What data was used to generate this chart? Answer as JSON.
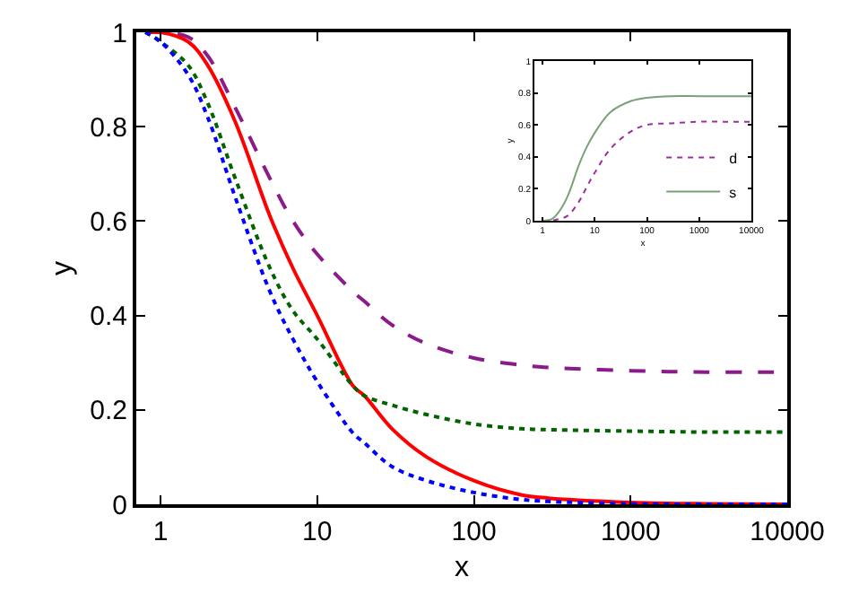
{
  "chart_data": [
    {
      "type": "line",
      "xlabel": "x",
      "ylabel": "y",
      "log": "x",
      "grid": false,
      "legend": false,
      "xlim": [
        0.7,
        10000
      ],
      "xticks": [
        1,
        10,
        100,
        1000,
        10000
      ],
      "ylim": [
        0,
        1
      ],
      "yticks": [
        0,
        0.2,
        0.4,
        0.6,
        0.8,
        1
      ],
      "x": [
        0.8,
        1,
        1.5,
        2,
        3,
        5,
        7,
        10,
        17,
        20,
        30,
        50,
        100,
        200,
        300,
        1000,
        3000,
        10000
      ],
      "series": [
        {
          "color": "#8b1a8b",
          "line_style": "dashed",
          "values": [
            1,
            1,
            0.99,
            0.95,
            0.84,
            0.69,
            0.6,
            0.53,
            0.45,
            0.43,
            0.38,
            0.34,
            0.31,
            0.295,
            0.29,
            0.283,
            0.28,
            0.28
          ]
        },
        {
          "color": "#ff0000",
          "line_style": "solid",
          "values": [
            1,
            1,
            0.98,
            0.93,
            0.81,
            0.61,
            0.5,
            0.4,
            0.25,
            0.23,
            0.16,
            0.1,
            0.05,
            0.02,
            0.013,
            0.004,
            0.001,
            0
          ]
        },
        {
          "color": "#006400",
          "line_style": "dotted",
          "values": [
            1,
            0.98,
            0.93,
            0.85,
            0.69,
            0.5,
            0.41,
            0.35,
            0.25,
            0.23,
            0.21,
            0.19,
            0.17,
            0.16,
            0.158,
            0.155,
            0.153,
            0.153
          ]
        },
        {
          "color": "#0000ff",
          "line_style": "dotted",
          "values": [
            1,
            0.98,
            0.91,
            0.82,
            0.65,
            0.45,
            0.35,
            0.26,
            0.15,
            0.13,
            0.08,
            0.05,
            0.025,
            0.01,
            0.006,
            0.001,
            0,
            0
          ]
        }
      ]
    },
    {
      "type": "line",
      "xlabel": "x",
      "ylabel": "y",
      "log": "x",
      "grid": false,
      "legend": "bottom right",
      "xlim": [
        0.7,
        10000
      ],
      "xticks": [
        1,
        10,
        100,
        1000,
        10000
      ],
      "ylim": [
        0,
        1
      ],
      "yticks": [
        0,
        0.2,
        0.4,
        0.6,
        0.8,
        1
      ],
      "x": [
        1,
        1.5,
        2,
        3,
        5,
        7,
        10,
        20,
        50,
        100,
        300,
        1000,
        3000,
        10000
      ],
      "series": [
        {
          "name": "d",
          "color": "#9b309b",
          "line_style": "dotted",
          "values": [
            0,
            0,
            0.01,
            0.03,
            0.12,
            0.21,
            0.3,
            0.45,
            0.56,
            0.6,
            0.61,
            0.62,
            0.62,
            0.62
          ]
        },
        {
          "name": "s",
          "color": "#7aa07a",
          "line_style": "solid",
          "values": [
            0,
            0.01,
            0.05,
            0.15,
            0.35,
            0.46,
            0.55,
            0.68,
            0.75,
            0.77,
            0.78,
            0.78,
            0.78,
            0.78
          ]
        }
      ]
    }
  ]
}
